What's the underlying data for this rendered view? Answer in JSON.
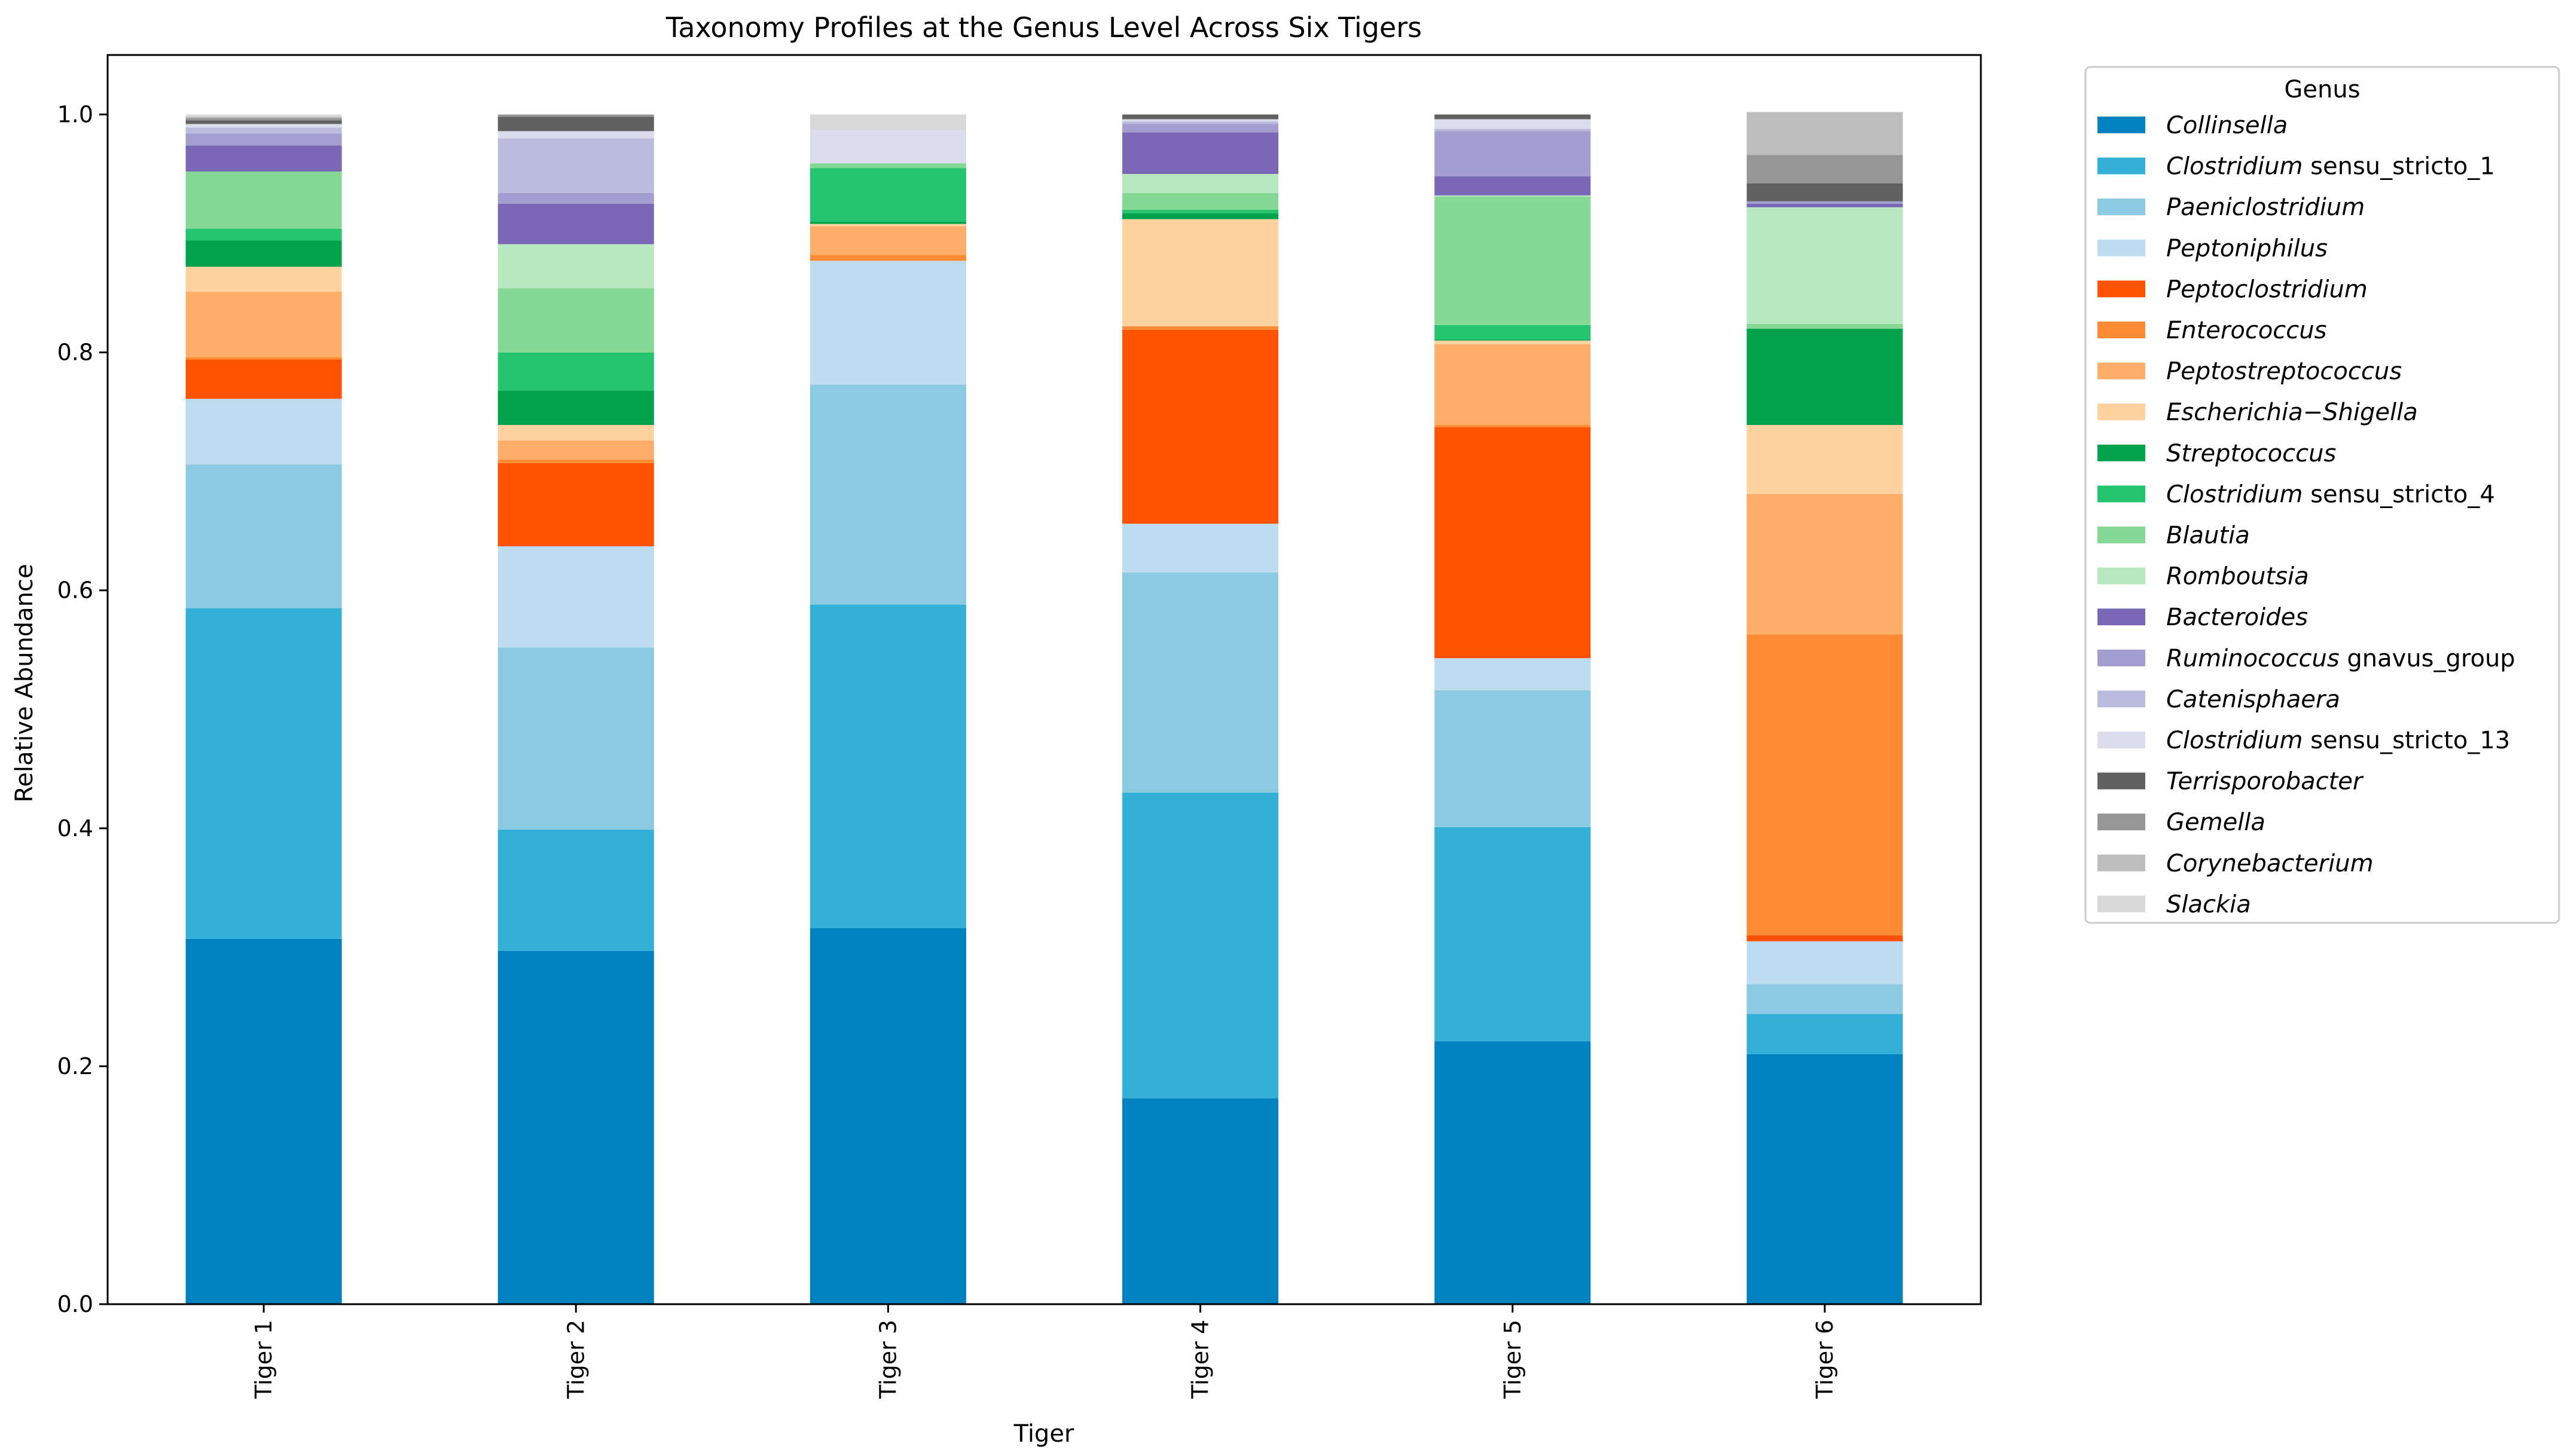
{
  "chart_data": {
    "type": "bar",
    "stacked": true,
    "title": "Taxonomy Profiles at the Genus Level Across Six Tigers",
    "xlabel": "Tiger",
    "ylabel": "Relative Abundance",
    "ylim": [
      0,
      1.05
    ],
    "yticks": [
      "0.0",
      "0.2",
      "0.4",
      "0.6",
      "0.8",
      "1.0"
    ],
    "ytick_values": [
      0,
      0.2,
      0.4,
      0.6,
      0.8,
      1.0
    ],
    "categories": [
      "Tiger 1",
      "Tiger 2",
      "Tiger 3",
      "Tiger 4",
      "Tiger 5",
      "Tiger 6"
    ],
    "legend_title": "Genus",
    "legend_position": "outside-right",
    "series": [
      {
        "name": "Collinsella",
        "italic": "Collinsella",
        "suffix": "",
        "color": "#0082c0",
        "values": [
          0.307,
          0.297,
          0.316,
          0.173,
          0.221,
          0.21
        ]
      },
      {
        "name": "Clostridium sensu_stricto_1",
        "italic": "Clostridium",
        "suffix": " sensu_stricto_1",
        "color": "#34b0d8",
        "values": [
          0.278,
          0.102,
          0.272,
          0.257,
          0.18,
          0.034
        ]
      },
      {
        "name": "Paeniclostridium",
        "italic": "Paeniclostridium",
        "suffix": "",
        "color": "#8ccae2",
        "values": [
          0.121,
          0.153,
          0.185,
          0.185,
          0.115,
          0.025
        ]
      },
      {
        "name": "Peptoniphilus",
        "italic": "Peptoniphilus",
        "suffix": "",
        "color": "#bedcf0",
        "values": [
          0.055,
          0.085,
          0.104,
          0.041,
          0.027,
          0.036
        ]
      },
      {
        "name": "Peptoclostridium",
        "italic": "Peptoclostridium",
        "suffix": "",
        "color": "#ff5200",
        "values": [
          0.033,
          0.07,
          0,
          0.163,
          0.194,
          0.005
        ]
      },
      {
        "name": "Enterococcus",
        "italic": "Enterococcus",
        "suffix": "",
        "color": "#ff8b34",
        "values": [
          0.002,
          0.003,
          0.005,
          0.003,
          0.002,
          0.253
        ]
      },
      {
        "name": "Peptostreptococcus",
        "italic": "Peptostreptococcus",
        "suffix": "",
        "color": "#ffae6a",
        "values": [
          0.055,
          0.016,
          0.024,
          0,
          0.068,
          0.118
        ]
      },
      {
        "name": "Escherichia−Shigella",
        "italic": "Escherichia−Shigella",
        "suffix": "",
        "color": "#ffd2a0",
        "values": [
          0.021,
          0.013,
          0.002,
          0.09,
          0.003,
          0.058
        ]
      },
      {
        "name": "Streptococcus",
        "italic": "Streptococcus",
        "suffix": "",
        "color": "#00a24c",
        "values": [
          0.022,
          0.029,
          0.002,
          0.005,
          0.001,
          0.081
        ]
      },
      {
        "name": "Clostridium sensu_stricto_4",
        "italic": "Clostridium",
        "suffix": " sensu_stricto_4",
        "color": "#25c46e",
        "values": [
          0.01,
          0.032,
          0.045,
          0.003,
          0.012,
          0
        ]
      },
      {
        "name": "Blautia",
        "italic": "Blautia",
        "suffix": "",
        "color": "#86d994",
        "values": [
          0.048,
          0.054,
          0.004,
          0.014,
          0.108,
          0.004
        ]
      },
      {
        "name": "Romboutsia",
        "italic": "Romboutsia",
        "suffix": "",
        "color": "#b8e8bf",
        "values": [
          0,
          0.037,
          0,
          0.016,
          0.001,
          0.098
        ]
      },
      {
        "name": "Bacteroides",
        "italic": "Bacteroides",
        "suffix": "",
        "color": "#7a68b6",
        "values": [
          0.022,
          0.034,
          0,
          0.035,
          0.016,
          0.003
        ]
      },
      {
        "name": "Ruminococcus gnavus_group",
        "italic": "Ruminococcus",
        "suffix": " gnavus_group",
        "color": "#a49dcf",
        "values": [
          0.01,
          0.009,
          0,
          0.007,
          0.038,
          0.002
        ]
      },
      {
        "name": "Catenisphaera",
        "italic": "Catenisphaera",
        "suffix": "",
        "color": "#bbbbdd",
        "values": [
          0.005,
          0.046,
          0,
          0.002,
          0.002,
          0
        ]
      },
      {
        "name": "Clostridium sensu_stricto_13",
        "italic": "Clostridium",
        "suffix": " sensu_stricto_13",
        "color": "#dcdcec",
        "values": [
          0.003,
          0.006,
          0.028,
          0.002,
          0.008,
          0
        ]
      },
      {
        "name": "Terrisporobacter",
        "italic": "Terrisporobacter",
        "suffix": "",
        "color": "#616161",
        "values": [
          0.003,
          0.012,
          0,
          0.004,
          0.004,
          0.015
        ]
      },
      {
        "name": "Gemella",
        "italic": "Gemella",
        "suffix": "",
        "color": "#969696",
        "values": [
          0.002,
          0.002,
          0,
          0,
          0,
          0.024
        ]
      },
      {
        "name": "Corynebacterium",
        "italic": "Corynebacterium",
        "suffix": "",
        "color": "#bdbdbd",
        "values": [
          0.001,
          0,
          0,
          0,
          0,
          0.036
        ]
      },
      {
        "name": "Slackia",
        "italic": "Slackia",
        "suffix": "",
        "color": "#d9d9d9",
        "values": [
          0.002,
          0,
          0.013,
          0,
          0,
          0
        ]
      }
    ]
  }
}
